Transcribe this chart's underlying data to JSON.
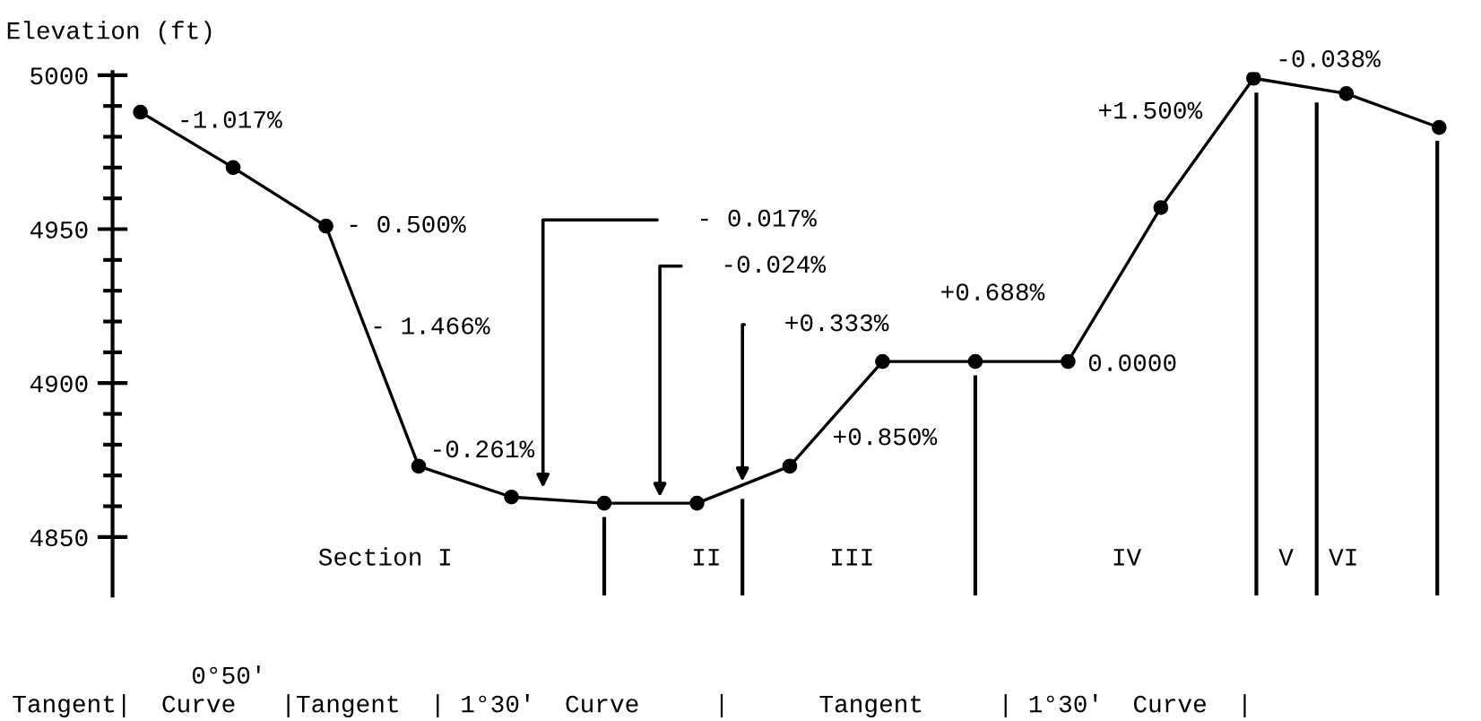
{
  "chart_data": {
    "type": "line",
    "ylabel": "Elevation (ft)",
    "categories": [
      null,
      null,
      null,
      null,
      null,
      null,
      null,
      null,
      null,
      null,
      null,
      null,
      null,
      null,
      null
    ],
    "series": [
      {
        "color": "#000000",
        "values": [
          4988,
          4970,
          4951,
          4873,
          4863,
          4861,
          4861,
          4873,
          4907,
          4907,
          4907,
          4957,
          4999,
          4994,
          4983
        ]
      }
    ],
    "marker": "circle",
    "line_style": "solid",
    "ylim": [
      4831,
      5001
    ],
    "yticks": [
      5000,
      {
        "value": 4990,
        "label": null
      },
      {
        "value": 4980,
        "label": null
      },
      {
        "value": 4970,
        "label": null
      },
      {
        "value": 4960,
        "label": null
      },
      4950,
      {
        "value": 4940,
        "label": null
      },
      {
        "value": 4930,
        "label": null
      },
      {
        "value": 4920,
        "label": null
      },
      {
        "value": 4910,
        "label": null
      },
      4900,
      {
        "value": 4890,
        "label": null
      },
      {
        "value": 4880,
        "label": null
      },
      {
        "value": 4870,
        "label": null
      },
      {
        "value": 4860,
        "label": null
      },
      4850
    ],
    "tick_labels": "y",
    "annotations": [
      "-1.017%",
      "- 0.500%",
      "- 1.466%",
      "-0.261%",
      "- 0.017%",
      "-0.024%",
      "+0.333%",
      "+0.850%",
      "+0.688%",
      "0.0000",
      "+1.500%",
      "-0.038%",
      "Section I",
      "II",
      "III",
      "IV",
      "V",
      "VI",
      "            0°50'\nTangent|  Curve   |Tangent  | 1°30'  Curve     |      Tangent     | 1°30'  Curve  |"
    ]
  }
}
